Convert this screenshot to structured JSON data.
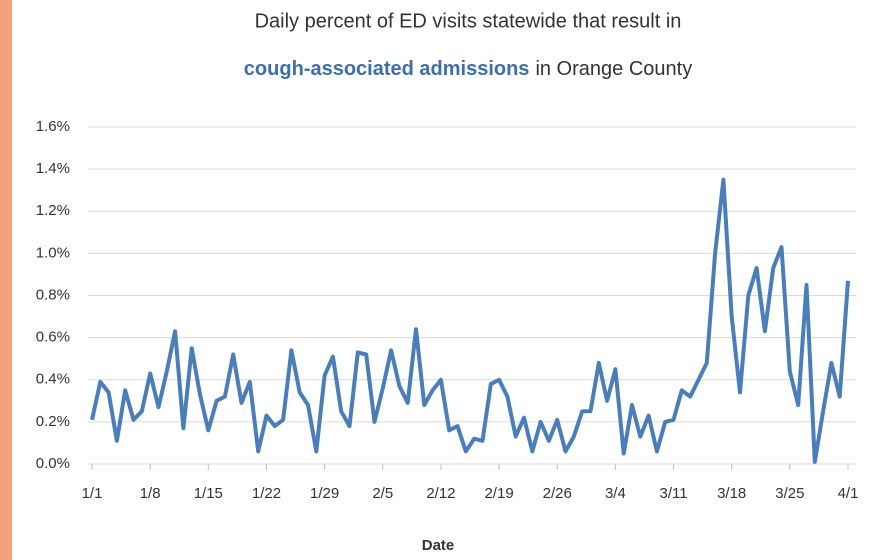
{
  "chart_data": {
    "type": "line",
    "title": "Daily percent of ED visits statewide that result in",
    "title_emphasis": "cough-associated admissions",
    "title_rest": "in Orange County",
    "x_label": "Date",
    "categories": [
      "1/1",
      null,
      null,
      null,
      null,
      null,
      null,
      "1/8",
      null,
      null,
      null,
      null,
      null,
      null,
      "1/15",
      null,
      null,
      null,
      null,
      null,
      null,
      "1/22",
      null,
      null,
      null,
      null,
      null,
      null,
      "1/29",
      null,
      null,
      null,
      null,
      null,
      null,
      "2/5",
      null,
      null,
      null,
      null,
      null,
      null,
      "2/12",
      null,
      null,
      null,
      null,
      null,
      null,
      "2/19",
      null,
      null,
      null,
      null,
      null,
      null,
      "2/26",
      null,
      null,
      null,
      null,
      null,
      null,
      "3/4",
      null,
      null,
      null,
      null,
      null,
      null,
      "3/11",
      null,
      null,
      null,
      null,
      null,
      null,
      "3/18",
      null,
      null,
      null,
      null,
      null,
      null,
      "3/25",
      null,
      null,
      null,
      null,
      null,
      null,
      "4/1"
    ],
    "series": [
      {
        "name": "Percent of ED visits",
        "color": "#4a7ebb",
        "values": [
          0.21,
          0.39,
          0.34,
          0.11,
          0.35,
          0.21,
          0.25,
          0.43,
          0.27,
          0.44,
          0.63,
          0.17,
          0.55,
          0.33,
          0.16,
          0.3,
          0.32,
          0.52,
          0.29,
          0.39,
          0.06,
          0.23,
          0.18,
          0.21,
          0.54,
          0.34,
          0.28,
          0.06,
          0.42,
          0.51,
          0.25,
          0.18,
          0.53,
          0.52,
          0.2,
          0.36,
          0.54,
          0.37,
          0.29,
          0.64,
          0.28,
          0.35,
          0.4,
          0.16,
          0.18,
          0.06,
          0.12,
          0.11,
          0.38,
          0.4,
          0.32,
          0.13,
          0.22,
          0.06,
          0.2,
          0.11,
          0.21,
          0.06,
          0.13,
          0.25,
          0.25,
          0.48,
          0.3,
          0.45,
          0.05,
          0.28,
          0.13,
          0.23,
          0.06,
          0.2,
          0.21,
          0.35,
          0.32,
          0.4,
          0.48,
          1.0,
          1.35,
          0.7,
          0.34,
          0.8,
          0.93,
          0.63,
          0.93,
          1.03,
          0.44,
          0.28,
          0.85,
          0.01,
          0.25,
          0.48,
          0.32,
          0.87
        ]
      }
    ],
    "ylim": [
      0,
      1.6
    ],
    "yticks": [
      {
        "value": 0,
        "label": "0.0%"
      },
      {
        "value": 0.2,
        "label": "0.2%"
      },
      {
        "value": 0.4,
        "label": "0.4%"
      },
      {
        "value": 0.6,
        "label": "0.6%"
      },
      {
        "value": 0.8,
        "label": "0.8%"
      },
      {
        "value": 1.0,
        "label": "1.0%"
      },
      {
        "value": 1.2,
        "label": "1.2%"
      },
      {
        "value": 1.4,
        "label": "1.4%"
      },
      {
        "value": 1.6,
        "label": "1.6%"
      }
    ],
    "grid": true
  }
}
